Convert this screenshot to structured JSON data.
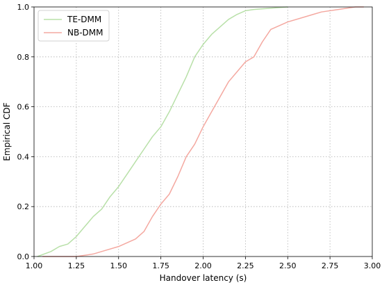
{
  "chart_data": {
    "type": "line",
    "xlabel": "Handover latency (s)",
    "ylabel": "Empirical CDF",
    "xlim": [
      1.0,
      3.0
    ],
    "ylim": [
      0.0,
      1.0
    ],
    "xticks": [
      1.0,
      1.25,
      1.5,
      1.75,
      2.0,
      2.25,
      2.5,
      2.75,
      3.0
    ],
    "xtick_labels": [
      "1.00",
      "1.25",
      "1.50",
      "1.75",
      "2.00",
      "2.25",
      "2.50",
      "2.75",
      "3.00"
    ],
    "yticks": [
      0.0,
      0.2,
      0.4,
      0.6,
      0.8,
      1.0
    ],
    "ytick_labels": [
      "0.0",
      "0.2",
      "0.4",
      "0.6",
      "0.8",
      "1.0"
    ],
    "grid": true,
    "legend_position": "top-left",
    "series": [
      {
        "name": "TE-DMM",
        "color": "#b8e0a8",
        "x": [
          1.02,
          1.1,
          1.15,
          1.2,
          1.25,
          1.3,
          1.35,
          1.4,
          1.45,
          1.5,
          1.55,
          1.6,
          1.65,
          1.7,
          1.75,
          1.8,
          1.85,
          1.9,
          1.95,
          2.0,
          2.05,
          2.1,
          2.15,
          2.2,
          2.25,
          2.3,
          2.4,
          2.5
        ],
        "y": [
          0.0,
          0.02,
          0.04,
          0.05,
          0.08,
          0.12,
          0.16,
          0.19,
          0.24,
          0.28,
          0.33,
          0.38,
          0.43,
          0.48,
          0.52,
          0.58,
          0.65,
          0.72,
          0.8,
          0.85,
          0.89,
          0.92,
          0.95,
          0.97,
          0.985,
          0.99,
          0.995,
          1.0
        ]
      },
      {
        "name": "NB-DMM",
        "color": "#f4a8a0",
        "x": [
          1.05,
          1.25,
          1.35,
          1.4,
          1.5,
          1.6,
          1.65,
          1.7,
          1.75,
          1.8,
          1.85,
          1.9,
          1.95,
          2.0,
          2.05,
          2.1,
          2.15,
          2.2,
          2.25,
          2.3,
          2.35,
          2.4,
          2.5,
          2.6,
          2.65,
          2.7,
          2.8,
          2.9,
          2.95
        ],
        "y": [
          0.0,
          0.0,
          0.01,
          0.02,
          0.04,
          0.07,
          0.1,
          0.16,
          0.21,
          0.25,
          0.32,
          0.4,
          0.45,
          0.52,
          0.58,
          0.64,
          0.7,
          0.74,
          0.78,
          0.8,
          0.86,
          0.91,
          0.94,
          0.96,
          0.97,
          0.98,
          0.99,
          1.0,
          1.0
        ]
      }
    ]
  }
}
